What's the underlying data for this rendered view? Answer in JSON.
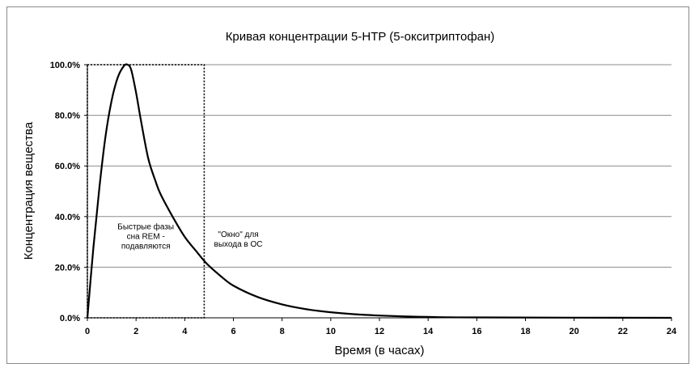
{
  "chart_data": {
    "type": "line",
    "title": "Кривая концентрации 5-HTP (5-окситриптофан)",
    "xlabel": "Время (в часах)",
    "ylabel": "Концентрация вещества",
    "xlim": [
      0,
      24
    ],
    "ylim": [
      0,
      100
    ],
    "x_ticks": [
      "0",
      "2",
      "4",
      "6",
      "8",
      "10",
      "12",
      "14",
      "16",
      "18",
      "20",
      "22",
      "24"
    ],
    "y_ticks": [
      "0.0%",
      "20.0%",
      "40.0%",
      "60.0%",
      "80.0%",
      "100.0%"
    ],
    "grid": "horizontal",
    "series": [
      {
        "x": [
          0,
          0.25,
          0.5,
          0.75,
          1.0,
          1.25,
          1.5,
          1.65,
          1.8,
          2.0,
          2.2,
          2.5,
          2.8,
          3.0,
          3.5,
          4.0,
          4.5,
          4.8,
          5.0,
          5.5,
          6.0,
          7.0,
          8.0,
          9.0,
          10.0,
          11.0,
          12.0,
          13.0,
          14.0,
          16.0,
          24.0
        ],
        "y": [
          0,
          28,
          52,
          72,
          86,
          95,
          99.5,
          100,
          98,
          89,
          78,
          63,
          54,
          49,
          40,
          32,
          26,
          22.5,
          20.5,
          16.3,
          12.7,
          8.2,
          5.3,
          3.4,
          2.2,
          1.4,
          0.9,
          0.55,
          0.35,
          0.15,
          0
        ],
        "color": "#000000"
      }
    ],
    "highlight_box": {
      "x_range": [
        0,
        4.8
      ],
      "y_range": [
        0,
        100
      ],
      "style": "dotted"
    },
    "annotations": [
      {
        "lines": [
          "Быстрые фазы",
          "сна REM -",
          "подавляются"
        ],
        "x": 2.4,
        "y": 35
      },
      {
        "lines": [
          "\"Окно\" для",
          "выхода в ОС"
        ],
        "x": 6.2,
        "y": 32
      }
    ]
  }
}
